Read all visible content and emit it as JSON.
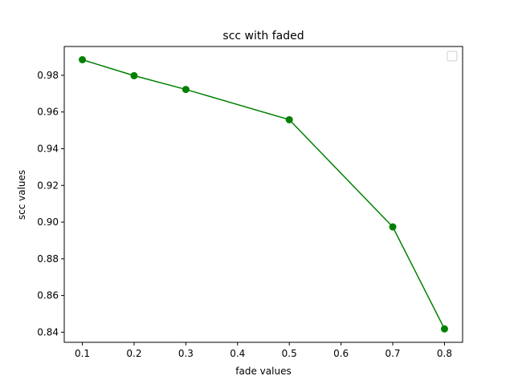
{
  "chart_data": {
    "type": "line",
    "title": "scc with faded",
    "xlabel": "fade values",
    "ylabel": "scc values",
    "x": [
      0.1,
      0.2,
      0.3,
      0.5,
      0.7,
      0.8
    ],
    "series": [
      {
        "values": [
          0.9885,
          0.9798,
          0.9723,
          0.9558,
          0.8974,
          0.8418
        ]
      }
    ],
    "xlim": [
      0.065,
      0.835
    ],
    "ylim": [
      0.8345,
      0.9957
    ],
    "xticks": [
      "0.1",
      "0.2",
      "0.3",
      "0.4",
      "0.5",
      "0.6",
      "0.7",
      "0.8"
    ],
    "yticks": [
      "0.84",
      "0.86",
      "0.88",
      "0.90",
      "0.92",
      "0.94",
      "0.96",
      "0.98"
    ],
    "grid": false,
    "legend": "upper right (empty)",
    "line_color": "#008000",
    "marker": "circle"
  }
}
